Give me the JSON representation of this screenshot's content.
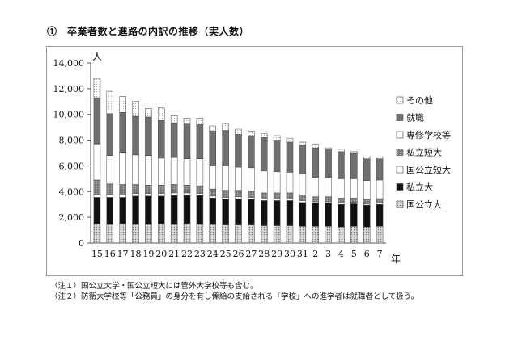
{
  "title": "①　卒業者数と進路の内訳の推移（実人数）",
  "notes": [
    "（注１）国公立大学・国公立短大には管外大学校等も含む。",
    "（注２）防衛大学校等「公務員」の身分を有し俸給の支給される「学校」への進学者は就職者として扱う。"
  ],
  "chart_data": {
    "type": "bar",
    "stacked": true,
    "title": "",
    "ylabel": "人",
    "xlabel": "年",
    "ylim": [
      0,
      14000
    ],
    "yticks": [
      0,
      2000,
      4000,
      6000,
      8000,
      10000,
      12000,
      14000
    ],
    "ytick_labels": [
      "0",
      "2,000",
      "4,000",
      "6,000",
      "8,000",
      "10,000",
      "12,000",
      "14,000"
    ],
    "categories": [
      "15",
      "16",
      "17",
      "18",
      "19",
      "20",
      "21",
      "22",
      "23",
      "24",
      "25",
      "26",
      "27",
      "28",
      "29",
      "30",
      "31",
      "2",
      "3",
      "4",
      "5",
      "6",
      "7"
    ],
    "legend_position": "right",
    "series": [
      {
        "name": "国公立大",
        "pattern": "dots-light",
        "values": [
          1500,
          1450,
          1500,
          1450,
          1450,
          1500,
          1450,
          1500,
          1450,
          1450,
          1400,
          1400,
          1400,
          1350,
          1350,
          1350,
          1300,
          1300,
          1300,
          1250,
          1300,
          1250,
          1300
        ]
      },
      {
        "name": "私立大",
        "pattern": "black",
        "values": [
          2050,
          2100,
          2050,
          2200,
          2200,
          2150,
          2250,
          2200,
          2250,
          2050,
          2000,
          2050,
          2000,
          1950,
          1950,
          1950,
          1850,
          1800,
          1800,
          1750,
          1750,
          1700,
          1700
        ]
      },
      {
        "name": "国公立短大",
        "pattern": "white",
        "values": [
          250,
          250,
          200,
          200,
          200,
          200,
          200,
          200,
          150,
          150,
          150,
          150,
          150,
          150,
          150,
          150,
          150,
          100,
          100,
          100,
          100,
          100,
          100
        ]
      },
      {
        "name": "私立短大",
        "pattern": "gray-dots",
        "values": [
          1100,
          800,
          800,
          700,
          650,
          650,
          650,
          600,
          600,
          550,
          550,
          500,
          500,
          450,
          450,
          450,
          450,
          400,
          400,
          400,
          350,
          350,
          350
        ]
      },
      {
        "name": "専修学校等",
        "pattern": "white",
        "values": [
          2800,
          2200,
          2500,
          2300,
          2300,
          2100,
          2100,
          2050,
          2100,
          1800,
          1900,
          1800,
          1800,
          1700,
          1650,
          1600,
          1600,
          1500,
          1500,
          1500,
          1500,
          1450,
          1450
        ]
      },
      {
        "name": "就職",
        "pattern": "gray",
        "values": [
          3600,
          3250,
          3100,
          3000,
          3000,
          2950,
          2700,
          2750,
          2650,
          2700,
          2750,
          2550,
          2500,
          2600,
          2450,
          2350,
          2300,
          2300,
          2150,
          2100,
          1950,
          1700,
          1650
        ]
      },
      {
        "name": "その他",
        "pattern": "dots-white",
        "values": [
          1500,
          1750,
          1250,
          1150,
          650,
          950,
          550,
          400,
          500,
          400,
          550,
          400,
          350,
          300,
          350,
          300,
          200,
          300,
          150,
          200,
          150,
          150,
          150
        ]
      }
    ]
  }
}
